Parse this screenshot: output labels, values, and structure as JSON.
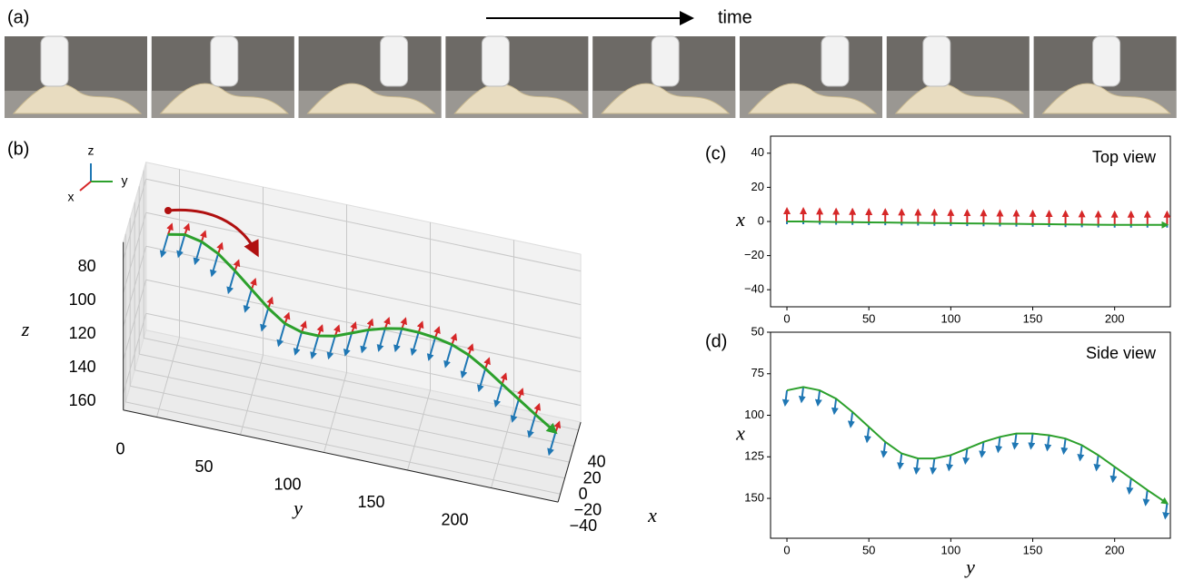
{
  "panels": [
    "(a)",
    "(b)",
    "(c)",
    "(d)"
  ],
  "time_label": "time",
  "axis_key": [
    "z",
    "y",
    "x"
  ],
  "chart_data": [
    {
      "type": "quiver3d",
      "xlabel": "x",
      "ylabel": "y",
      "zlabel": "z",
      "y": [
        0,
        10,
        20,
        30,
        40,
        50,
        60,
        70,
        80,
        90,
        100,
        110,
        120,
        130,
        140,
        150,
        160,
        170,
        180,
        190,
        200,
        210,
        220,
        232
      ],
      "x": [
        0,
        0,
        -0.2,
        -0.3,
        -0.4,
        -0.5,
        -0.6,
        -0.7,
        -0.8,
        -0.9,
        -1,
        -1.1,
        -1.2,
        -1.3,
        -1.4,
        -1.5,
        -1.6,
        -1.7,
        -1.8,
        -1.9,
        -2,
        -2,
        -2,
        -2
      ],
      "z": [
        85,
        83,
        85,
        90,
        98,
        107,
        116,
        123,
        126,
        126,
        124,
        120,
        116,
        113,
        111,
        111,
        112,
        114,
        118,
        124,
        131,
        138,
        145,
        153
      ],
      "ylim": [
        -20,
        240
      ],
      "xlim": [
        -50,
        50
      ],
      "zlim": [
        70,
        170
      ],
      "yticks": [
        0,
        50,
        100,
        150,
        200
      ],
      "xticks": [
        40,
        20,
        0,
        {
          "value": -20,
          "label": "−20"
        },
        {
          "value": -40,
          "label": "−40"
        }
      ],
      "zticks": [
        80,
        100,
        120,
        140,
        160
      ]
    },
    {
      "type": "quiver",
      "title": "Top view",
      "ylabel": "x",
      "x": [
        0,
        10,
        20,
        30,
        40,
        50,
        60,
        70,
        80,
        90,
        100,
        110,
        120,
        130,
        140,
        150,
        160,
        170,
        180,
        190,
        200,
        210,
        220,
        232
      ],
      "values": [
        0,
        0,
        -0.2,
        -0.3,
        -0.4,
        -0.5,
        -0.6,
        -0.7,
        -0.8,
        -0.9,
        -1,
        -1.1,
        -1.2,
        -1.3,
        -1.4,
        -1.5,
        -1.6,
        -1.7,
        -1.8,
        -1.9,
        -2,
        -2,
        -2,
        -2
      ],
      "xlim": [
        -10,
        234
      ],
      "ylim": [
        -50,
        50
      ],
      "xticks": [
        0,
        50,
        100,
        150,
        200
      ],
      "yticks": [
        40,
        20,
        0,
        {
          "value": -20,
          "label": "−20"
        },
        {
          "value": -40,
          "label": "−40"
        }
      ]
    },
    {
      "type": "quiver",
      "title": "Side view",
      "xlabel": "y",
      "ylabel": "x",
      "x": [
        0,
        10,
        20,
        30,
        40,
        50,
        60,
        70,
        80,
        90,
        100,
        110,
        120,
        130,
        140,
        150,
        160,
        170,
        180,
        190,
        200,
        210,
        220,
        232
      ],
      "values": [
        85,
        83,
        85,
        90,
        98,
        107,
        116,
        123,
        126,
        126,
        124,
        120,
        116,
        113,
        111,
        111,
        112,
        114,
        118,
        124,
        131,
        138,
        145,
        153
      ],
      "xlim": [
        -10,
        234
      ],
      "ylim": [
        50,
        174
      ],
      "inverted": true,
      "xticks": [
        0,
        50,
        100,
        150,
        200
      ],
      "yticks": [
        50,
        75,
        100,
        125,
        150
      ]
    }
  ]
}
